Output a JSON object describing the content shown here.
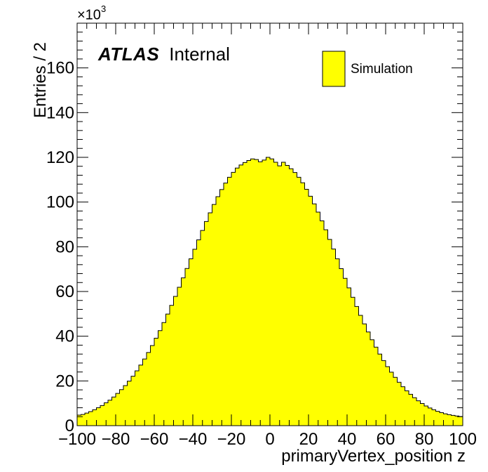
{
  "branding": {
    "experiment": "ATLAS",
    "status": "Internal"
  },
  "chart_data": {
    "type": "bar",
    "style": "histogram",
    "title": "",
    "xlabel": "primaryVertex_position z",
    "ylabel": "Entries / 2",
    "y_multiplier_prefix": "×10",
    "y_multiplier_exp": "3",
    "xlim": [
      -100,
      100
    ],
    "ylim": [
      0,
      180
    ],
    "bin_width": 2,
    "x_ticks": [
      -100,
      -80,
      -60,
      -40,
      -20,
      0,
      20,
      40,
      60,
      80,
      100
    ],
    "x_tick_labels": [
      "−100",
      "−80",
      "−60",
      "−40",
      "−20",
      "0",
      "20",
      "40",
      "60",
      "80",
      "100"
    ],
    "y_ticks": [
      0,
      20,
      40,
      60,
      80,
      100,
      120,
      140,
      160
    ],
    "y_tick_labels": [
      "0",
      "20",
      "40",
      "60",
      "80",
      "100",
      "120",
      "140",
      "160"
    ],
    "legend_position": "top-right",
    "grid": false,
    "series": [
      {
        "name": "Simulation",
        "color": "#ffff00",
        "edge_color": "#000000",
        "bin_low_edges": [
          -100,
          -98,
          -96,
          -94,
          -92,
          -90,
          -88,
          -86,
          -84,
          -82,
          -80,
          -78,
          -76,
          -74,
          -72,
          -70,
          -68,
          -66,
          -64,
          -62,
          -60,
          -58,
          -56,
          -54,
          -52,
          -50,
          -48,
          -46,
          -44,
          -42,
          -40,
          -38,
          -36,
          -34,
          -32,
          -30,
          -28,
          -26,
          -24,
          -22,
          -20,
          -18,
          -16,
          -14,
          -12,
          -10,
          -8,
          -6,
          -4,
          -2,
          0,
          2,
          4,
          6,
          8,
          10,
          12,
          14,
          16,
          18,
          20,
          22,
          24,
          26,
          28,
          30,
          32,
          34,
          36,
          38,
          40,
          42,
          44,
          46,
          48,
          50,
          52,
          54,
          56,
          58,
          60,
          62,
          64,
          66,
          68,
          70,
          72,
          74,
          76,
          78,
          80,
          82,
          84,
          86,
          88,
          90,
          92,
          94,
          96,
          98
        ],
        "values": [
          4.7,
          5.0,
          5.6,
          6.3,
          7.1,
          8.0,
          9.0,
          10.2,
          11.4,
          12.8,
          14.4,
          16.1,
          17.9,
          19.9,
          22.1,
          24.5,
          27.1,
          29.8,
          32.7,
          35.8,
          39.1,
          42.5,
          46.1,
          49.9,
          53.8,
          57.8,
          61.9,
          66.1,
          70.3,
          74.6,
          78.9,
          83.1,
          87.3,
          91.3,
          95.2,
          98.9,
          102.4,
          105.6,
          108.5,
          111.1,
          113.3,
          115.2,
          116.6,
          117.7,
          118.6,
          119.3,
          119.0,
          118.0,
          118.8,
          120.0,
          119.3,
          117.8,
          116.2,
          117.8,
          116.4,
          114.9,
          113.2,
          111.1,
          108.6,
          105.7,
          102.6,
          99.2,
          95.5,
          91.6,
          87.6,
          83.3,
          79.0,
          74.6,
          70.2,
          65.9,
          61.6,
          57.4,
          53.3,
          49.3,
          45.5,
          41.9,
          38.4,
          35.1,
          32.0,
          29.1,
          26.4,
          23.9,
          21.6,
          19.4,
          17.4,
          15.6,
          14.0,
          12.5,
          11.1,
          9.9,
          8.8,
          7.9,
          7.1,
          6.4,
          5.8,
          5.3,
          4.9,
          4.6,
          4.3,
          4.1
        ]
      }
    ]
  }
}
